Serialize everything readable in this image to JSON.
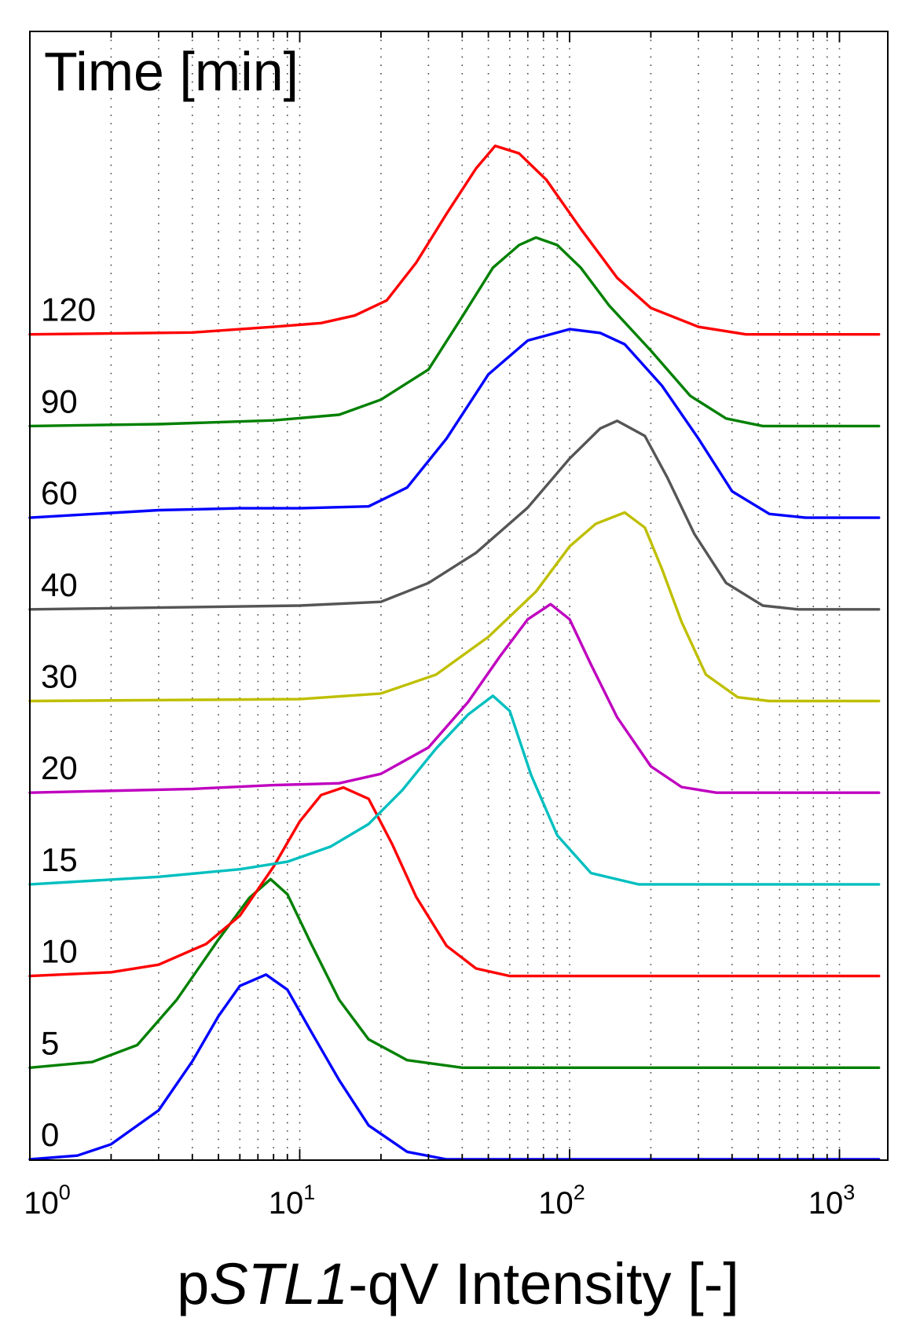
{
  "chart_data": {
    "type": "line",
    "title": "Time [min]",
    "xlabel": {
      "prefix": "p",
      "gene": "STL1",
      "suffix": "-qV Intensity [-]"
    },
    "ylabel": "",
    "xscale": "log",
    "xlim": [
      1,
      1400
    ],
    "x_ticks": [
      {
        "base": "10",
        "exp": "0",
        "value": 1
      },
      {
        "base": "10",
        "exp": "1",
        "value": 10
      },
      {
        "base": "10",
        "exp": "2",
        "value": 100
      },
      {
        "base": "10",
        "exp": "3",
        "value": 1000
      }
    ],
    "grid": "dotted vertical at minor log ticks",
    "series": [
      {
        "time": "0",
        "color": "#0000ff",
        "points": [
          [
            1,
            0.0
          ],
          [
            1.5,
            0.02
          ],
          [
            2,
            0.08
          ],
          [
            3,
            0.26
          ],
          [
            4,
            0.52
          ],
          [
            5,
            0.76
          ],
          [
            6,
            0.92
          ],
          [
            7.5,
            0.98
          ],
          [
            9,
            0.9
          ],
          [
            11,
            0.68
          ],
          [
            14,
            0.42
          ],
          [
            18,
            0.18
          ],
          [
            25,
            0.04
          ],
          [
            35,
            0.0
          ],
          [
            1400,
            0.0
          ]
        ]
      },
      {
        "time": "5",
        "color": "#008000",
        "points": [
          [
            1,
            0.0
          ],
          [
            1.7,
            0.03
          ],
          [
            2.5,
            0.12
          ],
          [
            3.5,
            0.36
          ],
          [
            5,
            0.68
          ],
          [
            6.5,
            0.9
          ],
          [
            7.8,
            1.0
          ],
          [
            9,
            0.92
          ],
          [
            11,
            0.66
          ],
          [
            14,
            0.36
          ],
          [
            18,
            0.15
          ],
          [
            25,
            0.04
          ],
          [
            40,
            0.0
          ],
          [
            1400,
            0.0
          ]
        ]
      },
      {
        "time": "10",
        "color": "#ff0000",
        "points": [
          [
            1,
            0.0
          ],
          [
            2,
            0.02
          ],
          [
            3,
            0.06
          ],
          [
            4.5,
            0.17
          ],
          [
            6,
            0.32
          ],
          [
            8,
            0.58
          ],
          [
            10,
            0.82
          ],
          [
            12,
            0.96
          ],
          [
            14.5,
            1.0
          ],
          [
            18,
            0.94
          ],
          [
            22,
            0.7
          ],
          [
            27,
            0.42
          ],
          [
            35,
            0.16
          ],
          [
            45,
            0.04
          ],
          [
            60,
            0.0
          ],
          [
            1400,
            0.0
          ]
        ]
      },
      {
        "time": "15",
        "color": "#00bfbf",
        "points": [
          [
            1,
            0.0
          ],
          [
            3,
            0.04
          ],
          [
            6,
            0.08
          ],
          [
            9,
            0.12
          ],
          [
            13,
            0.2
          ],
          [
            18,
            0.32
          ],
          [
            24,
            0.5
          ],
          [
            32,
            0.72
          ],
          [
            42,
            0.9
          ],
          [
            52,
            1.0
          ],
          [
            60,
            0.92
          ],
          [
            72,
            0.58
          ],
          [
            90,
            0.26
          ],
          [
            120,
            0.06
          ],
          [
            180,
            0.0
          ],
          [
            1400,
            0.0
          ]
        ]
      },
      {
        "time": "20",
        "color": "#bf00bf",
        "points": [
          [
            1,
            0.0
          ],
          [
            4,
            0.02
          ],
          [
            8,
            0.04
          ],
          [
            14,
            0.05
          ],
          [
            20,
            0.1
          ],
          [
            30,
            0.24
          ],
          [
            42,
            0.48
          ],
          [
            55,
            0.72
          ],
          [
            70,
            0.92
          ],
          [
            85,
            1.0
          ],
          [
            100,
            0.92
          ],
          [
            120,
            0.68
          ],
          [
            150,
            0.4
          ],
          [
            200,
            0.14
          ],
          [
            260,
            0.03
          ],
          [
            350,
            0.0
          ],
          [
            1400,
            0.0
          ]
        ]
      },
      {
        "time": "30",
        "color": "#bfbf00",
        "points": [
          [
            1,
            0.0
          ],
          [
            10,
            0.01
          ],
          [
            20,
            0.04
          ],
          [
            32,
            0.14
          ],
          [
            50,
            0.34
          ],
          [
            75,
            0.58
          ],
          [
            100,
            0.82
          ],
          [
            125,
            0.94
          ],
          [
            160,
            1.0
          ],
          [
            190,
            0.92
          ],
          [
            220,
            0.7
          ],
          [
            260,
            0.42
          ],
          [
            320,
            0.14
          ],
          [
            420,
            0.02
          ],
          [
            550,
            0.0
          ],
          [
            1400,
            0.0
          ]
        ]
      },
      {
        "time": "40",
        "color": "#555555",
        "points": [
          [
            1,
            0.0
          ],
          [
            10,
            0.02
          ],
          [
            20,
            0.04
          ],
          [
            30,
            0.14
          ],
          [
            45,
            0.3
          ],
          [
            70,
            0.54
          ],
          [
            100,
            0.8
          ],
          [
            130,
            0.96
          ],
          [
            150,
            1.0
          ],
          [
            190,
            0.92
          ],
          [
            230,
            0.7
          ],
          [
            290,
            0.4
          ],
          [
            380,
            0.14
          ],
          [
            520,
            0.02
          ],
          [
            700,
            0.0
          ],
          [
            1400,
            0.0
          ]
        ]
      },
      {
        "time": "60",
        "color": "#0000ff",
        "points": [
          [
            1,
            0.0
          ],
          [
            3,
            0.04
          ],
          [
            6,
            0.05
          ],
          [
            10,
            0.05
          ],
          [
            18,
            0.06
          ],
          [
            25,
            0.16
          ],
          [
            35,
            0.42
          ],
          [
            50,
            0.76
          ],
          [
            70,
            0.94
          ],
          [
            100,
            1.0
          ],
          [
            130,
            0.98
          ],
          [
            160,
            0.92
          ],
          [
            220,
            0.7
          ],
          [
            300,
            0.42
          ],
          [
            400,
            0.14
          ],
          [
            550,
            0.02
          ],
          [
            750,
            0.0
          ],
          [
            1400,
            0.0
          ]
        ]
      },
      {
        "time": "90",
        "color": "#008000",
        "points": [
          [
            1,
            0.0
          ],
          [
            3,
            0.01
          ],
          [
            8,
            0.03
          ],
          [
            14,
            0.06
          ],
          [
            20,
            0.14
          ],
          [
            30,
            0.3
          ],
          [
            40,
            0.58
          ],
          [
            52,
            0.84
          ],
          [
            65,
            0.96
          ],
          [
            75,
            1.0
          ],
          [
            90,
            0.96
          ],
          [
            110,
            0.84
          ],
          [
            140,
            0.64
          ],
          [
            200,
            0.4
          ],
          [
            280,
            0.16
          ],
          [
            380,
            0.04
          ],
          [
            520,
            0.0
          ],
          [
            1400,
            0.0
          ]
        ]
      },
      {
        "time": "120",
        "color": "#ff0000",
        "points": [
          [
            1,
            0.0
          ],
          [
            4,
            0.01
          ],
          [
            8,
            0.04
          ],
          [
            12,
            0.06
          ],
          [
            16,
            0.1
          ],
          [
            21,
            0.18
          ],
          [
            27,
            0.38
          ],
          [
            35,
            0.64
          ],
          [
            45,
            0.88
          ],
          [
            53,
            1.0
          ],
          [
            65,
            0.96
          ],
          [
            82,
            0.82
          ],
          [
            110,
            0.56
          ],
          [
            150,
            0.3
          ],
          [
            200,
            0.14
          ],
          [
            300,
            0.04
          ],
          [
            450,
            0.0
          ],
          [
            1400,
            0.0
          ]
        ]
      }
    ]
  }
}
